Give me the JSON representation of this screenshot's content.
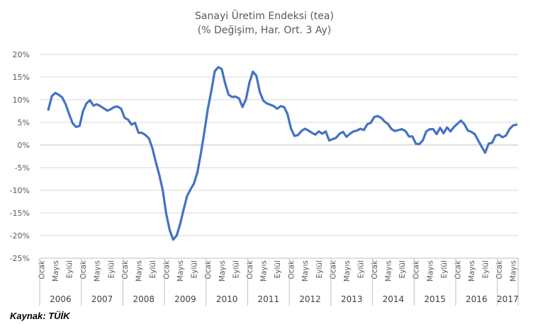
{
  "chart_data": {
    "type": "line",
    "title": "Sanayi Üretim Endeksi (tea)",
    "subtitle": "(% Değişim, Har. Ort. 3 Ay)",
    "xlabel": "",
    "ylabel": "",
    "ylim": [
      -25,
      20
    ],
    "ytick_step": 5,
    "ytick_suffix": "%",
    "grid": true,
    "legend": "none",
    "line_color": "#4472c4",
    "month_labels": [
      "Ocak",
      "Mayıs",
      "Eylül"
    ],
    "years": [
      "2006",
      "2007",
      "2008",
      "2009",
      "2010",
      "2011",
      "2012",
      "2013",
      "2014",
      "2015",
      "2016",
      "2017"
    ],
    "last_year_months": 6,
    "x_start": "2006-03",
    "x_end": "2017-06",
    "series": [
      {
        "values": [
          7.8,
          10.8,
          11.5,
          11.1,
          10.5,
          9.0,
          6.8,
          4.8,
          4.0,
          4.2,
          7.5,
          9.2,
          9.9,
          8.7,
          9.0,
          8.6,
          8.1,
          7.6,
          7.9,
          8.4,
          8.5,
          8.0,
          6.0,
          5.6,
          4.5,
          4.9,
          2.7,
          2.7,
          2.2,
          1.5,
          -0.7,
          -3.8,
          -6.6,
          -10.0,
          -15.2,
          -18.8,
          -20.9,
          -20.0,
          -17.5,
          -14.3,
          -11.3,
          -9.8,
          -8.5,
          -6.0,
          -1.8,
          2.9,
          8.0,
          11.9,
          16.3,
          17.2,
          16.8,
          13.6,
          11.1,
          10.6,
          10.7,
          10.3,
          8.4,
          10.1,
          13.8,
          16.2,
          15.3,
          11.7,
          9.8,
          9.2,
          8.9,
          8.6,
          8.0,
          8.6,
          8.4,
          6.8,
          3.6,
          2.0,
          2.2,
          3.1,
          3.6,
          3.2,
          2.7,
          2.3,
          3.0,
          2.5,
          3.0,
          1.0,
          1.3,
          1.6,
          2.5,
          2.9,
          1.8,
          2.5,
          3.0,
          3.2,
          3.6,
          3.3,
          4.6,
          4.9,
          6.2,
          6.4,
          6.0,
          5.2,
          4.6,
          3.5,
          3.1,
          3.3,
          3.5,
          3.1,
          1.9,
          1.9,
          0.3,
          0.2,
          1.0,
          3.0,
          3.5,
          3.5,
          2.4,
          3.8,
          2.6,
          3.9,
          3.0,
          4.0,
          4.7,
          5.4,
          4.6,
          3.2,
          2.9,
          2.4,
          1.0,
          -0.4,
          -1.7,
          0.3,
          0.5,
          2.1,
          2.3,
          1.7,
          2.1,
          3.5,
          4.3,
          4.5
        ]
      }
    ],
    "source": "Kaynak: TÜİK"
  }
}
